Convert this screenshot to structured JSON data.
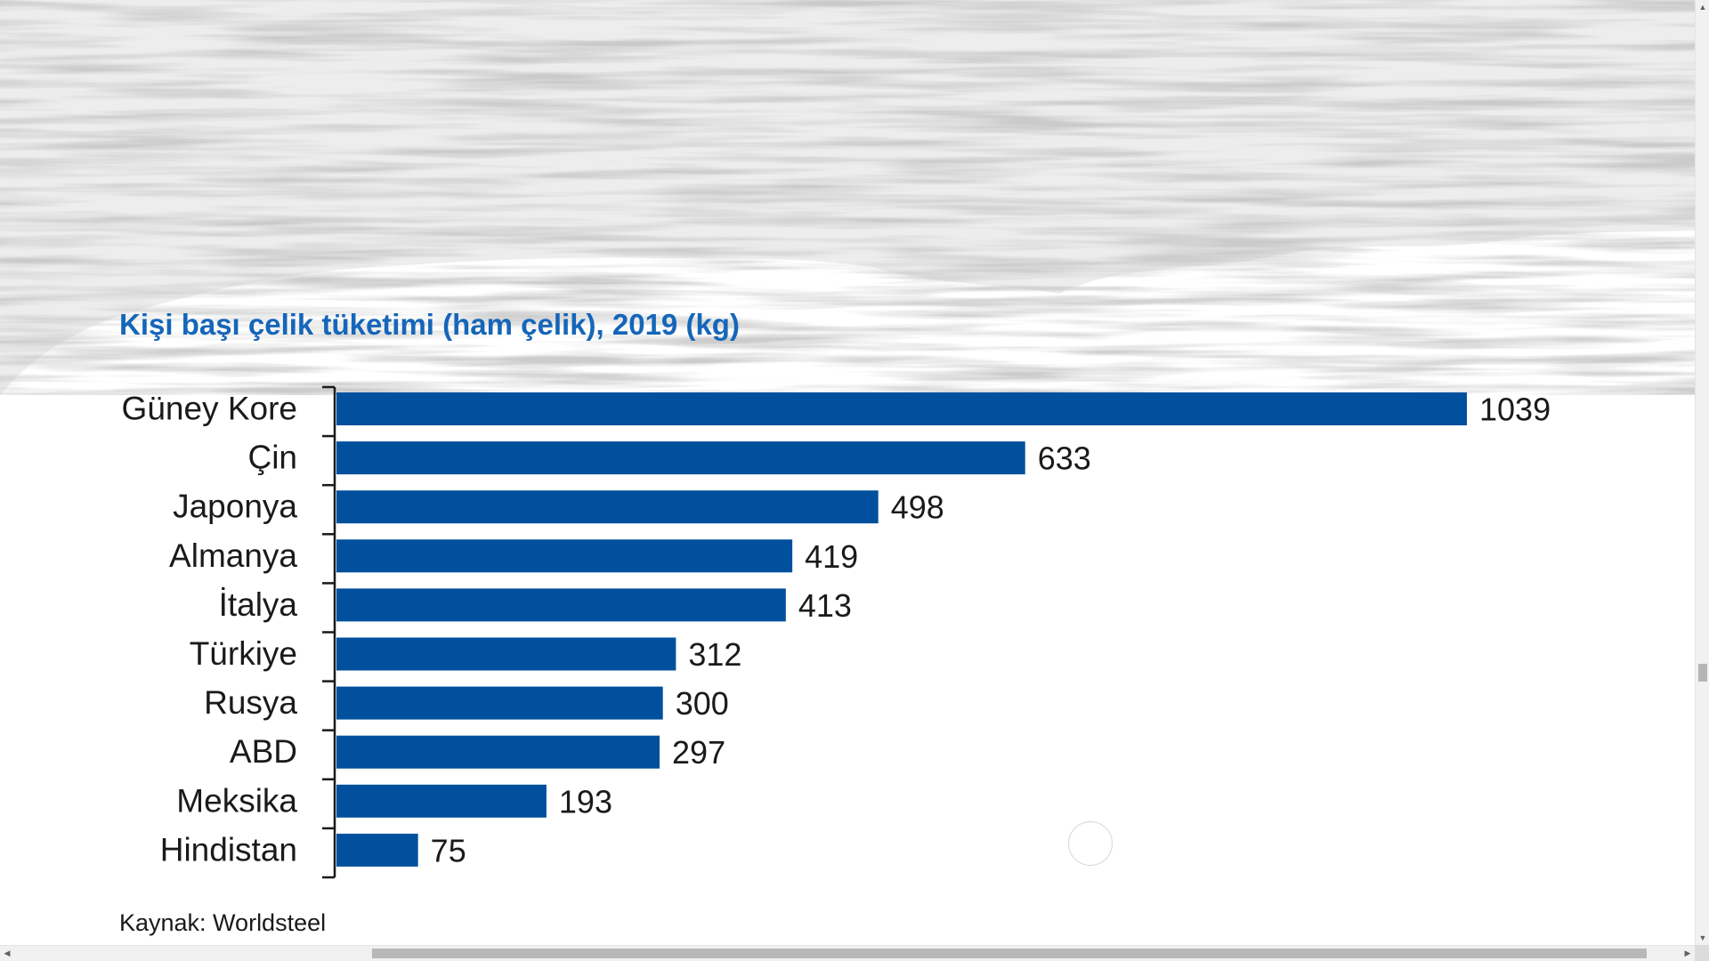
{
  "chart_data": {
    "type": "bar",
    "orientation": "horizontal",
    "title": "Kişi başı çelik tüketimi (ham çelik), 2019 (kg)",
    "categories": [
      "Güney Kore",
      "Çin",
      "Japonya",
      "Almanya",
      "İtalya",
      "Türkiye",
      "Rusya",
      "ABD",
      "Meksika",
      "Hindistan"
    ],
    "values": [
      1039,
      633,
      498,
      419,
      413,
      312,
      300,
      297,
      193,
      75
    ],
    "xlim": [
      0,
      1039
    ],
    "data_labels": true,
    "grid": false,
    "legend": "none",
    "bar_color": "#00509e",
    "title_color": "#1566b9",
    "source": "Kaynak: Worldsteel"
  },
  "ui": {
    "vscroll": {
      "up_icon": "▲",
      "down_icon": "▼"
    },
    "hscroll": {
      "left_icon": "◀",
      "right_icon": "▶"
    }
  }
}
